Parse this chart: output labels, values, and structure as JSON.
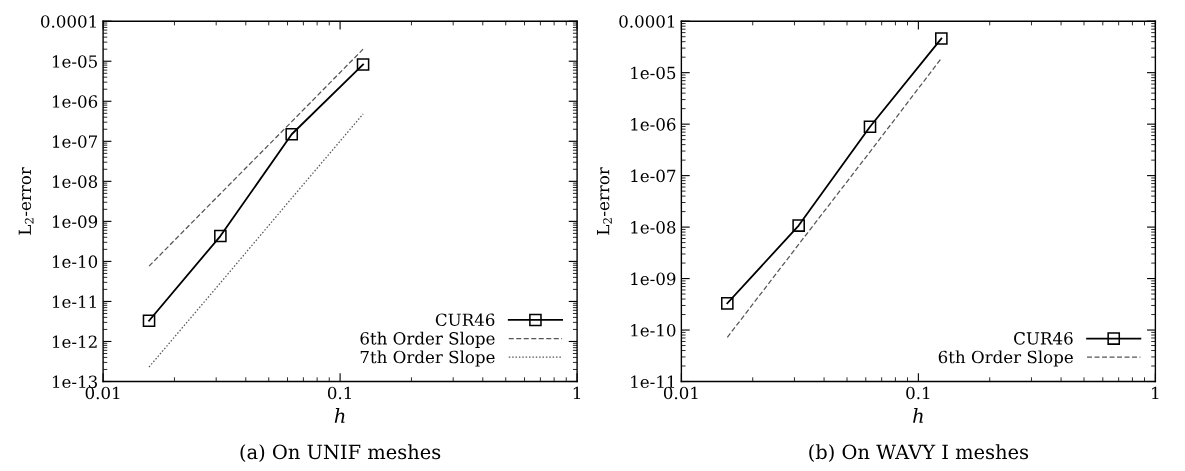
{
  "chart_data": [
    {
      "type": "line",
      "xlabel": "h",
      "ylabel": "L$_{2}$-error",
      "annotations": [
        "(a) On UNIF meshes"
      ],
      "log": "xy",
      "xlim": [
        0.01,
        1
      ],
      "xticks": [
        0.01,
        0.1,
        1
      ],
      "ylim": [
        1e-13,
        0.0001
      ],
      "yticks": [
        1e-13,
        1e-12,
        1e-11,
        1e-10,
        1e-09,
        1e-08,
        1e-07,
        1e-06,
        1e-05,
        0.0001
      ],
      "grid": false,
      "legend": "bottom right",
      "x": [
        0.015625,
        0.03125,
        0.0625,
        0.125
      ],
      "series": [
        {
          "name": "CUR46",
          "color": "#000000",
          "marker": "square",
          "line_style": "solid",
          "values": [
            3.3e-12,
            4.3e-10,
            1.5e-07,
            8.3e-06
          ]
        },
        {
          "name": "6th Order Slope",
          "color": "#555555",
          "marker": "none",
          "line_style": "dashed",
          "values": [
            7.6e-11,
            4.9e-09,
            3.1e-07,
            2e-05
          ]
        },
        {
          "name": "7th Order Slope",
          "color": "#555555",
          "marker": "none",
          "line_style": "dotted",
          "values": [
            2.3e-13,
            2.9e-11,
            3.8e-09,
            4.8e-07
          ]
        }
      ]
    },
    {
      "type": "line",
      "xlabel": "h",
      "ylabel": "L$_{2}$-error",
      "annotations": [
        "(b) On WAVY I meshes"
      ],
      "log": "xy",
      "xlim": [
        0.01,
        1
      ],
      "xticks": [
        0.01,
        0.1,
        1
      ],
      "ylim": [
        1e-11,
        0.0001
      ],
      "yticks": [
        1e-11,
        1e-10,
        1e-09,
        1e-08,
        1e-07,
        1e-06,
        1e-05,
        0.0001
      ],
      "grid": false,
      "legend": "bottom right",
      "x": [
        0.015625,
        0.03125,
        0.0625,
        0.125
      ],
      "series": [
        {
          "name": "CUR46",
          "color": "#000000",
          "marker": "square",
          "line_style": "solid",
          "values": [
            3.3e-10,
            1.07e-08,
            8.9e-07,
            4.6e-05
          ]
        },
        {
          "name": "6th Order Slope",
          "color": "#555555",
          "marker": "none",
          "line_style": "dashed",
          "values": [
            7.2e-11,
            4.6e-09,
            2.9e-07,
            1.9e-05
          ]
        }
      ]
    }
  ]
}
